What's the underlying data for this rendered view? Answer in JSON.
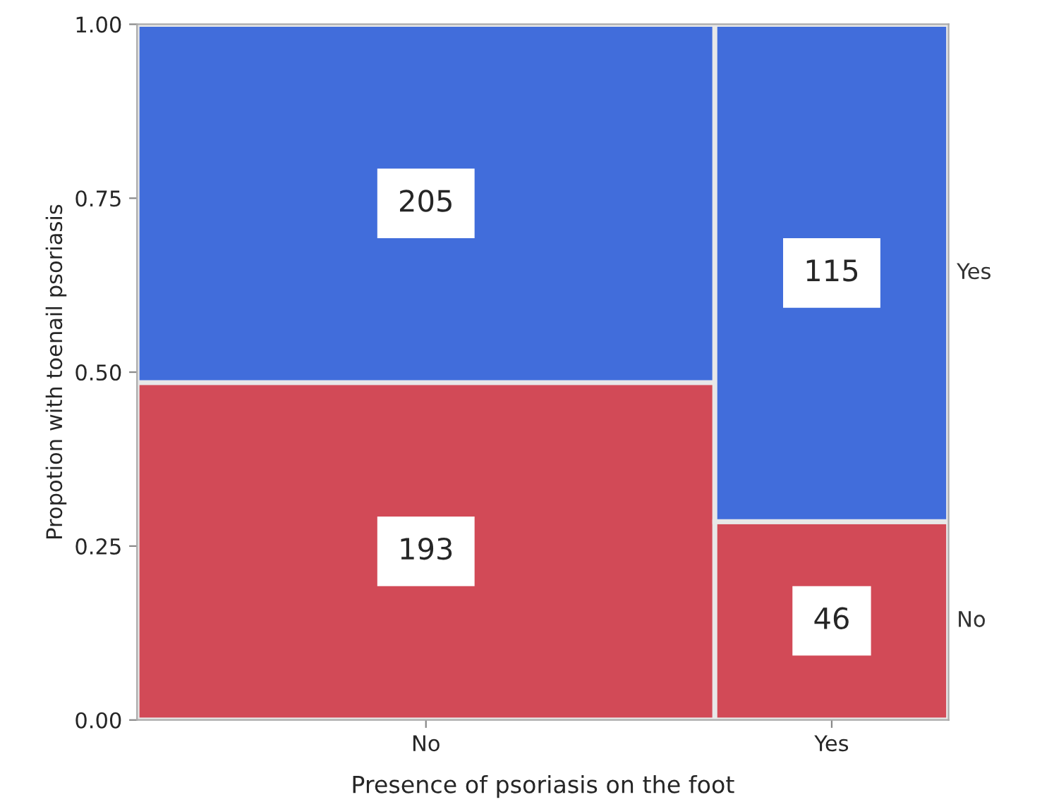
{
  "chart_data": {
    "type": "bar",
    "stacked": true,
    "xlabel": "Presence of psoriasis on the foot",
    "ylabel": "Propotion with toenail psoriasis",
    "categories": [
      "No",
      "Yes"
    ],
    "series": [
      {
        "name": "No",
        "color": "#d24a57",
        "values": [
          0.485,
          0.285
        ]
      },
      {
        "name": "Yes",
        "color": "#416ddb",
        "values": [
          0.515,
          0.715
        ]
      }
    ],
    "annotations": [
      "193",
      "46",
      "205",
      "115"
    ],
    "grid": false,
    "ylim": [
      0,
      1
    ],
    "yticks": [
      {
        "value": 0,
        "label": "0.00"
      },
      {
        "value": 0.25,
        "label": "0.25"
      },
      {
        "value": 0.5,
        "label": "0.50"
      },
      {
        "value": 0.75,
        "label": "0.75"
      },
      {
        "value": 1,
        "label": "1.00"
      }
    ],
    "legend": "right"
  }
}
